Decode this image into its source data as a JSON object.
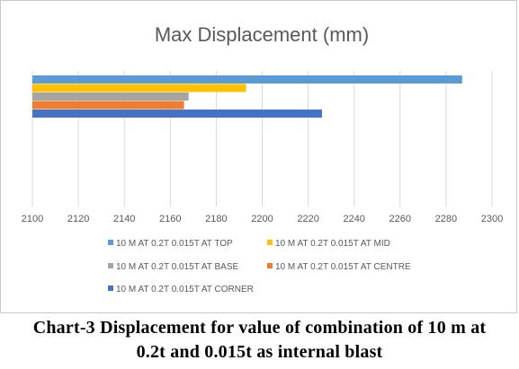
{
  "chart_data": {
    "type": "bar",
    "orientation": "horizontal",
    "title": "Max Displacement (mm)",
    "xlim": [
      2100,
      2300
    ],
    "x_ticks": [
      2100,
      2120,
      2140,
      2160,
      2180,
      2200,
      2220,
      2240,
      2260,
      2280,
      2300
    ],
    "grid": true,
    "legend_position": "bottom",
    "series": [
      {
        "name": "10 M AT 0.2T 0.015T AT TOP",
        "value": 2287,
        "color": "#5b9bd5"
      },
      {
        "name": "10 M AT 0.2T 0.015T AT MID",
        "value": 2193,
        "color": "#ffc000"
      },
      {
        "name": "10 M AT 0.2T 0.015T AT BASE",
        "value": 2168,
        "color": "#a5a5a5"
      },
      {
        "name": "10 M AT 0.2T 0.015T AT CENTRE",
        "value": 2166,
        "color": "#ed7d31"
      },
      {
        "name": "10 M AT 0.2T 0.015T AT CORNER",
        "value": 2226,
        "color": "#4472c4"
      }
    ]
  },
  "caption": {
    "line1": "Chart-3 Displacement for value of combination of 10 m at",
    "line2": "0.2t and 0.015t as internal blast"
  }
}
